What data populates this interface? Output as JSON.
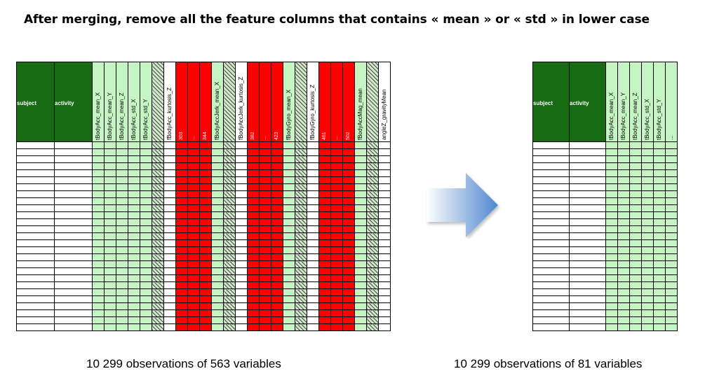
{
  "title": "After merging, remove all the feature columns that contains « mean » or « std » in lower case",
  "left_table": {
    "rows": 27,
    "columns": [
      {
        "label": "subject",
        "kind": "subject",
        "w": 54
      },
      {
        "label": "activity",
        "kind": "subject",
        "w": 54
      },
      {
        "label": "tBodyAcc_mean_X",
        "kind": "keep",
        "w": 17
      },
      {
        "label": "tBodyAcc_mean_Y",
        "kind": "keep",
        "w": 17
      },
      {
        "label": "tBodyAcc_mean_Z",
        "kind": "keep",
        "w": 17
      },
      {
        "label": "tBodyAcc_std_X",
        "kind": "keep",
        "w": 17
      },
      {
        "label": "tBodyAcc_std_Y",
        "kind": "keep",
        "w": 17
      },
      {
        "label": "",
        "kind": "hatch",
        "w": 17
      },
      {
        "label": "fBodyAcc_kurtosis_Z",
        "kind": "white",
        "w": 17
      },
      {
        "label": "303",
        "kind": "red",
        "w": 17
      },
      {
        "label": "...",
        "kind": "red",
        "w": 17
      },
      {
        "label": "344",
        "kind": "red",
        "w": 17
      },
      {
        "label": "fBodyAccJerk_mean_X",
        "kind": "keep",
        "w": 17
      },
      {
        "label": "",
        "kind": "hatch",
        "w": 17
      },
      {
        "label": "fBodyAccJerk_kurtosis_Z",
        "kind": "white",
        "w": 17
      },
      {
        "label": "382",
        "kind": "red",
        "w": 17
      },
      {
        "label": "...",
        "kind": "red",
        "w": 17
      },
      {
        "label": "423",
        "kind": "red",
        "w": 17
      },
      {
        "label": "fBodyGyro_mean_X",
        "kind": "keep",
        "w": 17
      },
      {
        "label": "...",
        "kind": "hatch",
        "w": 17
      },
      {
        "label": "fBodyGyro_kurtosis_Z",
        "kind": "white",
        "w": 17
      },
      {
        "label": "461",
        "kind": "red",
        "w": 17
      },
      {
        "label": "...",
        "kind": "red",
        "w": 17
      },
      {
        "label": "502",
        "kind": "red",
        "w": 17
      },
      {
        "label": "fBodyAccMag_mean",
        "kind": "keep",
        "w": 17
      },
      {
        "label": "",
        "kind": "hatch",
        "w": 17
      },
      {
        "label": "angleZ_gravityMean",
        "kind": "white",
        "w": 17
      }
    ]
  },
  "right_table": {
    "rows": 27,
    "columns": [
      {
        "label": "subject",
        "kind": "subject",
        "w": 52
      },
      {
        "label": "activity",
        "kind": "subject",
        "w": 52
      },
      {
        "label": "tBodyAcc_mean_X",
        "kind": "keep",
        "w": 17
      },
      {
        "label": "tBodyAcc_mean_Y",
        "kind": "keep",
        "w": 17
      },
      {
        "label": "tBodyAcc_mean_Z",
        "kind": "keep",
        "w": 17
      },
      {
        "label": "tBodyAcc_std_X",
        "kind": "keep",
        "w": 17
      },
      {
        "label": "tBodyAcc_std_Y",
        "kind": "keep",
        "w": 17
      },
      {
        "label": "...",
        "kind": "keep",
        "w": 17
      }
    ]
  },
  "caption_left": "10 299 observations of 563 variables",
  "caption_right": "10 299 observations of 81 variables",
  "colors": {
    "subject": "#176b12",
    "keep": "#c6f5c4",
    "red": "#ff0000",
    "arrow_dark": "#4f86cf",
    "arrow_light": "#ffffff"
  }
}
